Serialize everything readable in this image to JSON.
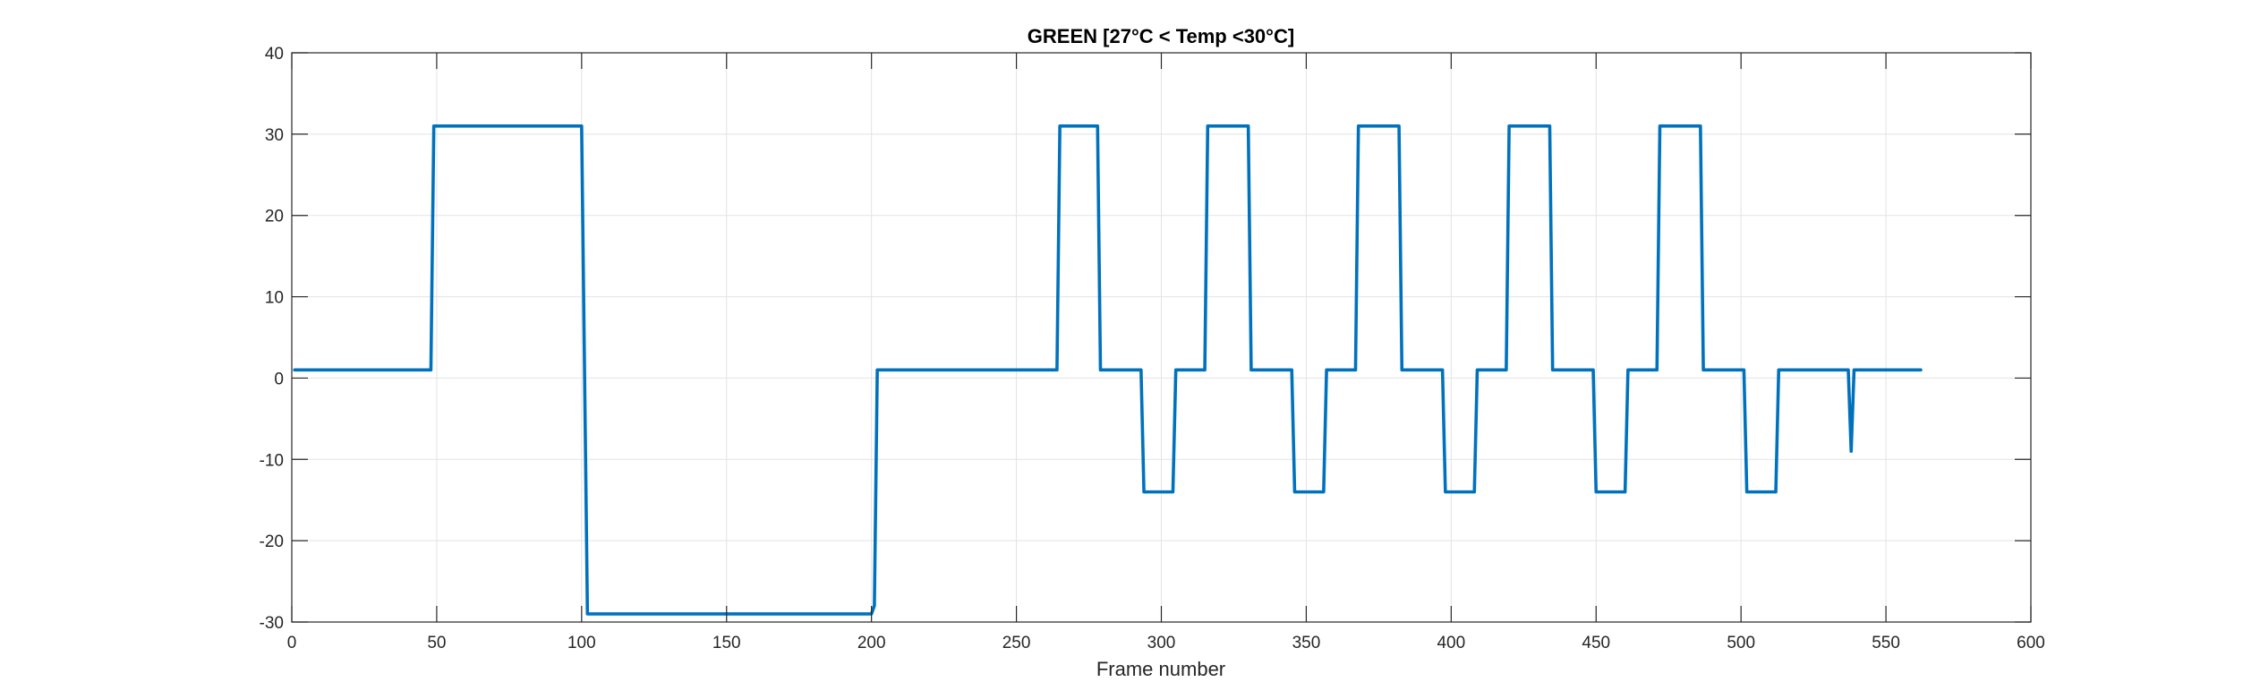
{
  "chart_data": {
    "type": "line",
    "title": "GREEN [27°C < Temp <30°C]",
    "xlabel": "Frame number",
    "ylabel": "",
    "xlim": [
      0,
      600
    ],
    "ylim": [
      -30,
      40
    ],
    "xticks": [
      0,
      50,
      100,
      150,
      200,
      250,
      300,
      350,
      400,
      450,
      500,
      550,
      600
    ],
    "yticks": [
      -30,
      -20,
      -10,
      0,
      10,
      20,
      30,
      40
    ],
    "xtick_labels": [
      "0",
      "50",
      "100",
      "150",
      "200",
      "250",
      "300",
      "350",
      "400",
      "450",
      "500",
      "550",
      "600"
    ],
    "ytick_labels": [
      "-30",
      "-20",
      "-10",
      "0",
      "10",
      "20",
      "30",
      "40"
    ],
    "grid": true,
    "legend": "none",
    "series": [
      {
        "color": "#0072BD",
        "x": [
          1,
          48,
          49,
          100,
          102,
          200,
          201,
          202,
          264,
          265,
          278,
          279,
          293,
          294,
          304,
          305,
          315,
          316,
          330,
          331,
          345,
          346,
          356,
          357,
          367,
          368,
          382,
          383,
          397,
          398,
          408,
          409,
          419,
          420,
          434,
          435,
          449,
          450,
          460,
          461,
          471,
          472,
          486,
          487,
          501,
          502,
          512,
          513,
          537,
          538,
          539,
          562
        ],
        "y": [
          1,
          1,
          31,
          31,
          -29,
          -29,
          -28,
          1,
          1,
          31,
          31,
          1,
          1,
          -14,
          -14,
          1,
          1,
          31,
          31,
          1,
          1,
          -14,
          -14,
          1,
          1,
          31,
          31,
          1,
          1,
          -14,
          -14,
          1,
          1,
          31,
          31,
          1,
          1,
          -14,
          -14,
          1,
          1,
          31,
          31,
          1,
          1,
          -14,
          -14,
          1,
          1,
          -9,
          1,
          1
        ]
      }
    ]
  }
}
